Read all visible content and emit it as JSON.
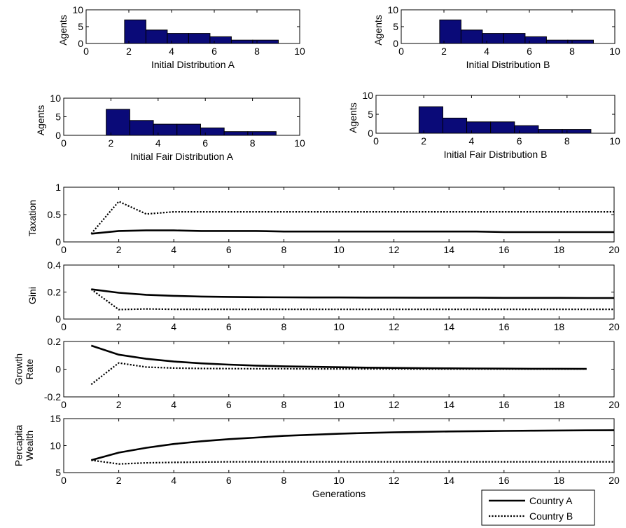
{
  "chart_data": [
    {
      "type": "bar",
      "xlabel": "Initial Distribution A",
      "ylabel": "Agents",
      "xlim": [
        0,
        10
      ],
      "ylim": [
        0,
        10
      ],
      "xticks": [
        "0",
        "2",
        "4",
        "6",
        "8",
        "10"
      ],
      "yticks": [
        "0",
        "5",
        "10"
      ],
      "bin_edges": [
        1.8,
        2.8,
        3.8,
        4.8,
        5.8,
        6.8,
        7.8,
        9.0
      ],
      "values": [
        7,
        4,
        3,
        3,
        2,
        1,
        1
      ],
      "bar_color": "#0a0a78"
    },
    {
      "type": "bar",
      "xlabel": "Initial Distribution B",
      "ylabel": "Agents",
      "xlim": [
        0,
        10
      ],
      "ylim": [
        0,
        10
      ],
      "xticks": [
        "0",
        "2",
        "4",
        "6",
        "8",
        "10"
      ],
      "yticks": [
        "0",
        "5",
        "10"
      ],
      "bin_edges": [
        1.8,
        2.8,
        3.8,
        4.8,
        5.8,
        6.8,
        7.8,
        9.0
      ],
      "values": [
        7,
        4,
        3,
        3,
        2,
        1,
        1
      ],
      "bar_color": "#0a0a78"
    },
    {
      "type": "bar",
      "xlabel": "Initial Fair Distribution A",
      "ylabel": "Agents",
      "xlim": [
        0,
        10
      ],
      "ylim": [
        0,
        10
      ],
      "xticks": [
        "0",
        "2",
        "4",
        "6",
        "8",
        "10"
      ],
      "yticks": [
        "0",
        "5",
        "10"
      ],
      "bin_edges": [
        1.8,
        2.8,
        3.8,
        4.8,
        5.8,
        6.8,
        7.8,
        9.0
      ],
      "values": [
        7,
        4,
        3,
        3,
        2,
        1,
        1
      ],
      "bar_color": "#0a0a78"
    },
    {
      "type": "bar",
      "xlabel": "Initial Fair Distribution B",
      "ylabel": "Agents",
      "xlim": [
        0,
        10
      ],
      "ylim": [
        0,
        10
      ],
      "xticks": [
        "0",
        "2",
        "4",
        "6",
        "8",
        "10"
      ],
      "yticks": [
        "0",
        "5",
        "10"
      ],
      "bin_edges": [
        1.8,
        2.8,
        3.8,
        4.8,
        5.8,
        6.8,
        7.8,
        9.0
      ],
      "values": [
        7,
        4,
        3,
        3,
        2,
        1,
        1
      ],
      "bar_color": "#0a0a78"
    },
    {
      "type": "line",
      "xlabel": "",
      "ylabel": "Taxation",
      "xlim": [
        0,
        20
      ],
      "ylim": [
        0,
        1
      ],
      "xticks": [
        "0",
        "2",
        "4",
        "6",
        "8",
        "10",
        "12",
        "14",
        "16",
        "18",
        "20"
      ],
      "yticks": [
        "0",
        "0.5",
        "1"
      ],
      "series": [
        {
          "name": "Country A",
          "style": "solid",
          "x": [
            1,
            2,
            3,
            4,
            5,
            6,
            7,
            8,
            9,
            10,
            11,
            12,
            13,
            14,
            15,
            16,
            17,
            18,
            19,
            20
          ],
          "y": [
            0.15,
            0.2,
            0.21,
            0.21,
            0.2,
            0.2,
            0.2,
            0.19,
            0.19,
            0.19,
            0.19,
            0.19,
            0.19,
            0.19,
            0.19,
            0.18,
            0.18,
            0.18,
            0.18,
            0.18
          ]
        },
        {
          "name": "Country B",
          "style": "dotted",
          "x": [
            1,
            2,
            3,
            4,
            5,
            6,
            7,
            8,
            9,
            10,
            11,
            12,
            13,
            14,
            15,
            16,
            17,
            18,
            19,
            20
          ],
          "y": [
            0.15,
            0.74,
            0.51,
            0.55,
            0.55,
            0.55,
            0.55,
            0.55,
            0.55,
            0.55,
            0.55,
            0.55,
            0.55,
            0.55,
            0.55,
            0.55,
            0.55,
            0.55,
            0.55,
            0.55
          ]
        }
      ]
    },
    {
      "type": "line",
      "xlabel": "",
      "ylabel": "Gini",
      "xlim": [
        0,
        20
      ],
      "ylim": [
        0,
        0.4
      ],
      "xticks": [
        "0",
        "2",
        "4",
        "6",
        "8",
        "10",
        "12",
        "14",
        "16",
        "18",
        "20"
      ],
      "yticks": [
        "0",
        "0.2",
        "0.4"
      ],
      "series": [
        {
          "name": "Country A",
          "style": "solid",
          "x": [
            1,
            2,
            3,
            4,
            5,
            6,
            7,
            8,
            9,
            10,
            11,
            12,
            13,
            14,
            15,
            16,
            17,
            18,
            19,
            20
          ],
          "y": [
            0.22,
            0.195,
            0.18,
            0.172,
            0.167,
            0.164,
            0.162,
            0.161,
            0.16,
            0.16,
            0.159,
            0.159,
            0.158,
            0.158,
            0.158,
            0.157,
            0.157,
            0.157,
            0.156,
            0.156
          ]
        },
        {
          "name": "Country B",
          "style": "dotted",
          "x": [
            1,
            2,
            3,
            4,
            5,
            6,
            7,
            8,
            9,
            10,
            11,
            12,
            13,
            14,
            15,
            16,
            17,
            18,
            19,
            20
          ],
          "y": [
            0.22,
            0.07,
            0.075,
            0.072,
            0.072,
            0.072,
            0.072,
            0.072,
            0.072,
            0.072,
            0.072,
            0.072,
            0.072,
            0.072,
            0.072,
            0.072,
            0.072,
            0.072,
            0.072,
            0.072
          ]
        }
      ]
    },
    {
      "type": "line",
      "xlabel": "",
      "ylabel": "Growth Rate",
      "ylabel_lines": [
        "Growth",
        "Rate"
      ],
      "xlim": [
        0,
        20
      ],
      "ylim": [
        -0.2,
        0.2
      ],
      "xticks": [
        "0",
        "2",
        "4",
        "6",
        "8",
        "10",
        "12",
        "14",
        "16",
        "18",
        "20"
      ],
      "yticks": [
        "-0.2",
        "0",
        "0.2"
      ],
      "series": [
        {
          "name": "Country A",
          "style": "solid",
          "x": [
            1,
            2,
            3,
            4,
            5,
            6,
            7,
            8,
            9,
            10,
            11,
            12,
            13,
            14,
            15,
            16,
            17,
            18,
            19
          ],
          "y": [
            0.17,
            0.105,
            0.075,
            0.055,
            0.042,
            0.033,
            0.026,
            0.021,
            0.017,
            0.014,
            0.011,
            0.009,
            0.007,
            0.006,
            0.005,
            0.004,
            0.003,
            0.003,
            0.002
          ]
        },
        {
          "name": "Country B",
          "style": "dotted",
          "x": [
            1,
            2,
            3,
            4,
            5,
            6,
            7,
            8,
            9,
            10,
            11,
            12,
            13,
            14,
            15,
            16,
            17,
            18,
            19
          ],
          "y": [
            -0.11,
            0.045,
            0.015,
            0.008,
            0.005,
            0.004,
            0.003,
            0.003,
            0.002,
            0.002,
            0.002,
            0.002,
            0.001,
            0.001,
            0.001,
            0.001,
            0.001,
            0.001,
            0.001
          ]
        }
      ]
    },
    {
      "type": "line",
      "xlabel": "Generations",
      "ylabel": "Percapita Wealth",
      "ylabel_lines": [
        "Percapita",
        "Wealth"
      ],
      "xlim": [
        0,
        20
      ],
      "ylim": [
        5,
        15
      ],
      "xticks": [
        "0",
        "2",
        "4",
        "6",
        "8",
        "10",
        "12",
        "14",
        "16",
        "18",
        "20"
      ],
      "yticks": [
        "5",
        "10",
        "15"
      ],
      "series": [
        {
          "name": "Country A",
          "style": "solid",
          "x": [
            1,
            2,
            3,
            4,
            5,
            6,
            7,
            8,
            9,
            10,
            11,
            12,
            13,
            14,
            15,
            16,
            17,
            18,
            19,
            20
          ],
          "y": [
            7.3,
            8.7,
            9.6,
            10.3,
            10.8,
            11.2,
            11.5,
            11.8,
            12.0,
            12.2,
            12.35,
            12.45,
            12.55,
            12.62,
            12.68,
            12.73,
            12.77,
            12.8,
            12.83,
            12.85
          ]
        },
        {
          "name": "Country B",
          "style": "dotted",
          "x": [
            1,
            2,
            3,
            4,
            5,
            6,
            7,
            8,
            9,
            10,
            11,
            12,
            13,
            14,
            15,
            16,
            17,
            18,
            19,
            20
          ],
          "y": [
            7.3,
            6.6,
            6.8,
            6.9,
            6.95,
            7.0,
            7.0,
            7.0,
            7.0,
            7.0,
            7.0,
            7.0,
            7.0,
            7.0,
            7.0,
            7.0,
            7.0,
            7.0,
            7.0,
            7.0
          ]
        }
      ]
    }
  ],
  "legend": {
    "entries": [
      {
        "label": "Country A",
        "style": "solid"
      },
      {
        "label": "Country B",
        "style": "dotted"
      }
    ],
    "placement": "bottom-right"
  }
}
